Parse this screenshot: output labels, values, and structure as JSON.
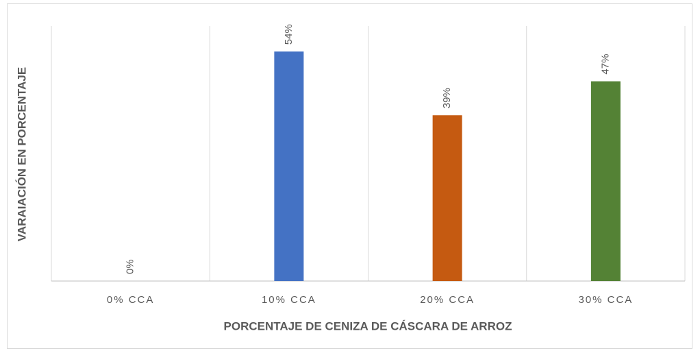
{
  "chart_data": {
    "type": "bar",
    "x_label": "PORCENTAJE DE CENIZA DE CÁSCARA DE ARROZ",
    "y_label": "VARAIACIÓN EN PORCENTAJE",
    "categories": [
      "0% CCA",
      "10% CCA",
      "20% CCA",
      "30% CCA"
    ],
    "values": [
      0,
      54,
      39,
      47
    ],
    "value_labels": [
      "0%",
      "54%",
      "39%",
      "47%"
    ],
    "colors": [
      "#a5a5a5",
      "#4472c4",
      "#c55a11",
      "#548235"
    ],
    "ylim": [
      0,
      60
    ]
  }
}
